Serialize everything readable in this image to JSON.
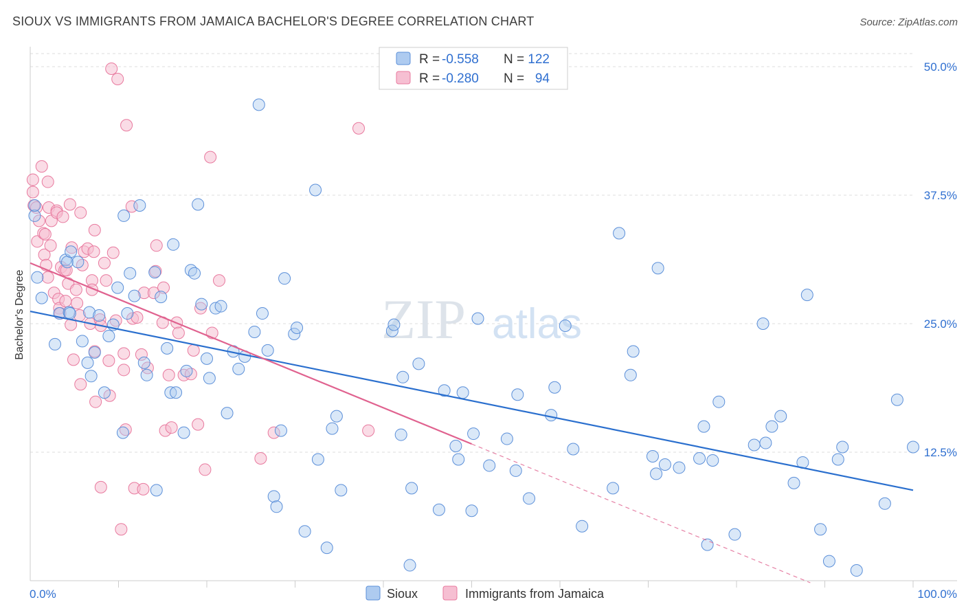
{
  "title": "SIOUX VS IMMIGRANTS FROM JAMAICA BACHELOR'S DEGREE CORRELATION CHART",
  "source": "Source: ZipAtlas.com",
  "watermark": {
    "zip": "ZIP",
    "atlas": "atlas"
  },
  "legend_stats": [
    {
      "r_label": "R =",
      "r_value": "-0.558",
      "n_label": "N =",
      "n_value": "122"
    },
    {
      "r_label": "R =",
      "r_value": "-0.280",
      "n_label": "N =",
      "n_value": "94"
    }
  ],
  "colors": {
    "blue": "#5b8fd9",
    "blue_fill": "#aecbf0",
    "pink": "#e8799e",
    "pink_fill": "#f6bfd2",
    "blue_line": "#2a6fce",
    "pink_line": "#e0628f",
    "value_text": "#2f6fd0"
  },
  "chart_data": {
    "type": "scatter",
    "title": "SIOUX VS IMMIGRANTS FROM JAMAICA BACHELOR'S DEGREE CORRELATION CHART",
    "xlabel": "",
    "ylabel": "Bachelor's Degree",
    "xlim": [
      0,
      100
    ],
    "ylim": [
      0,
      50
    ],
    "x_tick_labels": [
      "0.0%",
      "100.0%"
    ],
    "y_ticks": [
      12.5,
      25.0,
      37.5,
      50.0
    ],
    "y_tick_labels": [
      "12.5%",
      "25.0%",
      "37.5%",
      "50.0%"
    ],
    "legend": [
      "Sioux",
      "Immigrants from Jamaica"
    ],
    "series": [
      {
        "name": "Sioux",
        "r": -0.558,
        "n": 122,
        "trend": {
          "x": [
            0,
            100
          ],
          "y": [
            26.2,
            8.8
          ]
        },
        "points": [
          [
            0.5,
            35.5
          ],
          [
            0.5,
            36.5
          ],
          [
            0.8,
            29.5
          ],
          [
            1.3,
            27.5
          ],
          [
            2.8,
            23.0
          ],
          [
            3.3,
            26.0
          ],
          [
            4.0,
            31.2
          ],
          [
            4.2,
            31.0
          ],
          [
            4.4,
            26.1
          ],
          [
            4.5,
            26.0
          ],
          [
            4.6,
            32.0
          ],
          [
            5.4,
            31.0
          ],
          [
            5.9,
            23.3
          ],
          [
            6.5,
            21.2
          ],
          [
            6.7,
            26.1
          ],
          [
            6.9,
            19.9
          ],
          [
            7.3,
            22.2
          ],
          [
            7.8,
            25.8
          ],
          [
            8.4,
            18.3
          ],
          [
            8.9,
            23.8
          ],
          [
            9.4,
            24.9
          ],
          [
            9.9,
            28.5
          ],
          [
            10.5,
            14.4
          ],
          [
            10.6,
            35.5
          ],
          [
            11.0,
            26.0
          ],
          [
            11.3,
            29.9
          ],
          [
            11.8,
            27.7
          ],
          [
            12.4,
            36.5
          ],
          [
            12.9,
            21.2
          ],
          [
            13.2,
            20.0
          ],
          [
            14.1,
            30.0
          ],
          [
            14.3,
            8.8
          ],
          [
            14.8,
            27.6
          ],
          [
            15.5,
            22.6
          ],
          [
            15.9,
            18.3
          ],
          [
            16.2,
            32.7
          ],
          [
            16.5,
            18.3
          ],
          [
            17.4,
            14.4
          ],
          [
            17.7,
            20.4
          ],
          [
            18.2,
            30.2
          ],
          [
            18.6,
            29.9
          ],
          [
            19.0,
            36.6
          ],
          [
            19.4,
            26.9
          ],
          [
            20.0,
            21.6
          ],
          [
            20.3,
            19.7
          ],
          [
            21.0,
            26.5
          ],
          [
            21.6,
            26.7
          ],
          [
            22.3,
            16.3
          ],
          [
            23.0,
            22.3
          ],
          [
            23.6,
            20.6
          ],
          [
            24.3,
            21.8
          ],
          [
            25.4,
            24.2
          ],
          [
            25.9,
            46.3
          ],
          [
            26.3,
            26.0
          ],
          [
            26.9,
            22.4
          ],
          [
            27.6,
            8.2
          ],
          [
            27.9,
            7.2
          ],
          [
            28.4,
            14.6
          ],
          [
            28.8,
            29.4
          ],
          [
            29.9,
            24.0
          ],
          [
            30.2,
            24.6
          ],
          [
            31.1,
            4.8
          ],
          [
            32.3,
            38.0
          ],
          [
            32.6,
            11.8
          ],
          [
            33.6,
            3.2
          ],
          [
            34.2,
            14.8
          ],
          [
            34.7,
            16.0
          ],
          [
            35.2,
            8.8
          ],
          [
            41.0,
            24.3
          ],
          [
            41.2,
            24.9
          ],
          [
            42.0,
            14.2
          ],
          [
            42.2,
            19.8
          ],
          [
            43.0,
            1.5
          ],
          [
            43.2,
            9.0
          ],
          [
            44.0,
            21.1
          ],
          [
            46.3,
            6.9
          ],
          [
            46.9,
            18.5
          ],
          [
            48.2,
            13.1
          ],
          [
            48.5,
            11.8
          ],
          [
            49.0,
            18.3
          ],
          [
            50.0,
            6.8
          ],
          [
            50.2,
            14.3
          ],
          [
            50.7,
            25.5
          ],
          [
            52.0,
            11.2
          ],
          [
            54.0,
            13.8
          ],
          [
            55.0,
            10.7
          ],
          [
            55.2,
            18.1
          ],
          [
            56.5,
            8.0
          ],
          [
            59.0,
            16.1
          ],
          [
            59.4,
            18.8
          ],
          [
            60.6,
            24.8
          ],
          [
            61.5,
            12.8
          ],
          [
            62.5,
            5.3
          ],
          [
            66.0,
            9.0
          ],
          [
            66.7,
            33.8
          ],
          [
            68.0,
            20.0
          ],
          [
            68.3,
            22.3
          ],
          [
            70.5,
            12.1
          ],
          [
            70.9,
            10.4
          ],
          [
            71.1,
            30.4
          ],
          [
            71.9,
            11.3
          ],
          [
            73.5,
            11.0
          ],
          [
            75.8,
            11.9
          ],
          [
            76.3,
            15.0
          ],
          [
            76.7,
            3.5
          ],
          [
            77.3,
            11.7
          ],
          [
            78.0,
            17.4
          ],
          [
            79.8,
            4.5
          ],
          [
            82.0,
            13.2
          ],
          [
            83.0,
            25.0
          ],
          [
            83.3,
            13.4
          ],
          [
            84.0,
            15.0
          ],
          [
            85.0,
            16.0
          ],
          [
            86.5,
            9.5
          ],
          [
            87.5,
            11.5
          ],
          [
            88.0,
            27.8
          ],
          [
            89.5,
            5.0
          ],
          [
            90.5,
            1.9
          ],
          [
            91.5,
            11.8
          ],
          [
            92.0,
            13.0
          ],
          [
            93.6,
            1.0
          ],
          [
            96.8,
            7.5
          ],
          [
            98.2,
            17.6
          ],
          [
            100.0,
            13.0
          ]
        ]
      },
      {
        "name": "Immigrants from Jamaica",
        "r": -0.28,
        "n": 94,
        "trend": {
          "x": [
            0,
            50
          ],
          "y": [
            30.9,
            13.3
          ]
        },
        "trend_dashed": {
          "x": [
            50,
            100
          ],
          "y": [
            13.3,
            -4.3
          ]
        },
        "points": [
          [
            0.3,
            39.0
          ],
          [
            0.3,
            37.8
          ],
          [
            0.4,
            36.5
          ],
          [
            0.7,
            36.3
          ],
          [
            0.8,
            33.0
          ],
          [
            1.0,
            35.0
          ],
          [
            1.3,
            40.3
          ],
          [
            1.5,
            33.8
          ],
          [
            1.6,
            31.7
          ],
          [
            1.7,
            33.7
          ],
          [
            1.8,
            30.7
          ],
          [
            2.0,
            29.5
          ],
          [
            2.0,
            38.8
          ],
          [
            2.1,
            36.3
          ],
          [
            2.3,
            32.6
          ],
          [
            2.4,
            35.0
          ],
          [
            2.7,
            28.0
          ],
          [
            3.0,
            36.0
          ],
          [
            3.0,
            35.8
          ],
          [
            3.2,
            27.4
          ],
          [
            3.3,
            26.5
          ],
          [
            3.4,
            26.0
          ],
          [
            3.5,
            30.5
          ],
          [
            3.7,
            35.4
          ],
          [
            3.9,
            30.2
          ],
          [
            4.0,
            27.2
          ],
          [
            4.1,
            30.2
          ],
          [
            4.3,
            28.9
          ],
          [
            4.5,
            36.6
          ],
          [
            4.6,
            24.9
          ],
          [
            4.7,
            32.4
          ],
          [
            4.9,
            21.5
          ],
          [
            5.2,
            28.3
          ],
          [
            5.3,
            27.0
          ],
          [
            5.6,
            25.8
          ],
          [
            5.7,
            19.1
          ],
          [
            5.7,
            35.8
          ],
          [
            5.9,
            30.7
          ],
          [
            6.1,
            32.0
          ],
          [
            6.5,
            32.3
          ],
          [
            6.8,
            25.0
          ],
          [
            7.0,
            29.2
          ],
          [
            7.0,
            28.3
          ],
          [
            7.2,
            32.0
          ],
          [
            7.3,
            34.1
          ],
          [
            7.3,
            22.3
          ],
          [
            7.4,
            17.4
          ],
          [
            7.9,
            25.4
          ],
          [
            8.0,
            24.8
          ],
          [
            8.0,
            9.1
          ],
          [
            8.4,
            30.9
          ],
          [
            8.6,
            29.2
          ],
          [
            8.9,
            21.4
          ],
          [
            9.0,
            18.0
          ],
          [
            9.2,
            49.8
          ],
          [
            9.4,
            31.9
          ],
          [
            9.7,
            25.3
          ],
          [
            9.9,
            48.8
          ],
          [
            10.3,
            5.0
          ],
          [
            10.6,
            20.5
          ],
          [
            10.6,
            22.1
          ],
          [
            10.8,
            14.7
          ],
          [
            10.9,
            44.3
          ],
          [
            11.5,
            36.4
          ],
          [
            11.6,
            25.5
          ],
          [
            11.8,
            9.0
          ],
          [
            12.1,
            25.6
          ],
          [
            12.6,
            22.0
          ],
          [
            12.8,
            8.9
          ],
          [
            12.9,
            28.0
          ],
          [
            13.3,
            20.7
          ],
          [
            14.0,
            28.0
          ],
          [
            14.2,
            30.1
          ],
          [
            14.3,
            32.6
          ],
          [
            15.0,
            25.1
          ],
          [
            15.1,
            28.5
          ],
          [
            15.3,
            14.6
          ],
          [
            15.7,
            20.0
          ],
          [
            16.0,
            14.9
          ],
          [
            16.6,
            25.1
          ],
          [
            16.8,
            24.1
          ],
          [
            17.4,
            20.0
          ],
          [
            18.2,
            20.1
          ],
          [
            18.5,
            22.4
          ],
          [
            19.0,
            15.2
          ],
          [
            19.3,
            26.5
          ],
          [
            19.8,
            10.8
          ],
          [
            20.4,
            41.2
          ],
          [
            20.6,
            24.1
          ],
          [
            21.4,
            29.2
          ],
          [
            26.1,
            11.9
          ],
          [
            27.6,
            14.4
          ],
          [
            37.2,
            44.0
          ],
          [
            38.3,
            14.6
          ]
        ]
      }
    ]
  }
}
